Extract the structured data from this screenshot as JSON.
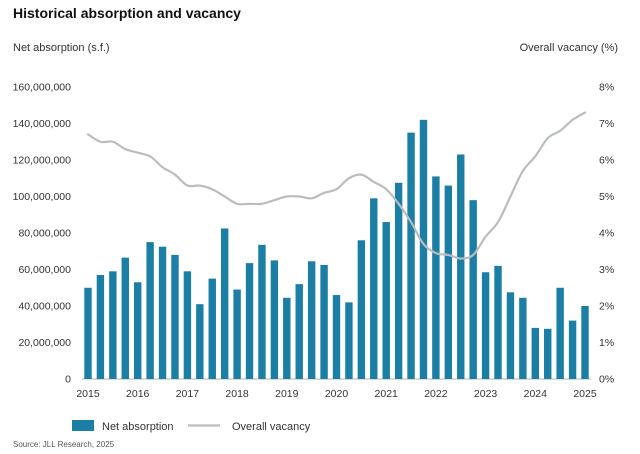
{
  "chart_data": {
    "type": "bar",
    "title": "Historical absorption and vacancy",
    "ylabel": "Net absorption (s.f.)",
    "y2label": "Overall vacancy (%)",
    "source": "Source: JLL Research, 2025",
    "ylim": [
      0,
      160000000
    ],
    "y2lim": [
      0,
      8
    ],
    "yticks": [
      "0",
      "20,000,000",
      "40,000,000",
      "60,000,000",
      "80,000,000",
      "100,000,000",
      "120,000,000",
      "140,000,000",
      "160,000,000"
    ],
    "y2ticks": [
      "0%",
      "1%",
      "2%",
      "3%",
      "4%",
      "5%",
      "6%",
      "7%",
      "8%"
    ],
    "xticks": [
      "2015",
      "2016",
      "2017",
      "2018",
      "2019",
      "2020",
      "2021",
      "2022",
      "2023",
      "2024",
      "2025"
    ],
    "x_start": 2015.0,
    "x_end": 2025.0,
    "series": [
      {
        "name": "Net absorption",
        "type": "bar",
        "color": "#1a7ea5",
        "x": [
          2015.0,
          2015.25,
          2015.5,
          2015.75,
          2016.0,
          2016.25,
          2016.5,
          2016.75,
          2017.0,
          2017.25,
          2017.5,
          2017.75,
          2018.0,
          2018.25,
          2018.5,
          2018.75,
          2019.0,
          2019.25,
          2019.5,
          2019.75,
          2020.0,
          2020.25,
          2020.5,
          2020.75,
          2021.0,
          2021.25,
          2021.5,
          2021.75,
          2022.0,
          2022.25,
          2022.5,
          2022.75,
          2023.0,
          2023.25,
          2023.5,
          2023.75,
          2024.0,
          2024.25,
          2024.5,
          2024.75,
          2025.0
        ],
        "values": [
          50000000,
          57000000,
          59000000,
          66500000,
          53000000,
          75000000,
          72500000,
          68000000,
          59000000,
          41000000,
          55000000,
          82500000,
          49000000,
          63500000,
          73500000,
          65000000,
          44500000,
          52000000,
          64500000,
          62500000,
          46000000,
          42000000,
          76000000,
          99000000,
          86000000,
          107500000,
          135000000,
          142000000,
          111000000,
          106000000,
          123000000,
          98000000,
          58500000,
          62000000,
          47500000,
          44500000,
          28000000,
          27500000,
          50000000,
          32000000,
          40000000
        ]
      },
      {
        "name": "Overall vacancy",
        "type": "line",
        "color": "#b9bdbf",
        "x": [
          2015.0,
          2015.25,
          2015.5,
          2015.75,
          2016.0,
          2016.25,
          2016.5,
          2016.75,
          2017.0,
          2017.25,
          2017.5,
          2017.75,
          2018.0,
          2018.25,
          2018.5,
          2018.75,
          2019.0,
          2019.25,
          2019.5,
          2019.75,
          2020.0,
          2020.25,
          2020.5,
          2020.75,
          2021.0,
          2021.25,
          2021.5,
          2021.75,
          2022.0,
          2022.25,
          2022.5,
          2022.75,
          2023.0,
          2023.25,
          2023.5,
          2023.75,
          2024.0,
          2024.25,
          2024.5,
          2024.75,
          2025.0
        ],
        "values": [
          6.7,
          6.5,
          6.5,
          6.3,
          6.2,
          6.1,
          5.8,
          5.6,
          5.3,
          5.3,
          5.2,
          5.0,
          4.8,
          4.8,
          4.8,
          4.9,
          5.0,
          5.0,
          4.95,
          5.1,
          5.2,
          5.5,
          5.6,
          5.4,
          5.2,
          4.8,
          4.3,
          3.7,
          3.45,
          3.4,
          3.3,
          3.4,
          3.9,
          4.3,
          5.0,
          5.7,
          6.1,
          6.6,
          6.8,
          7.1,
          7.3
        ]
      }
    ],
    "legend": [
      "Net absorption",
      "Overall vacancy"
    ]
  }
}
